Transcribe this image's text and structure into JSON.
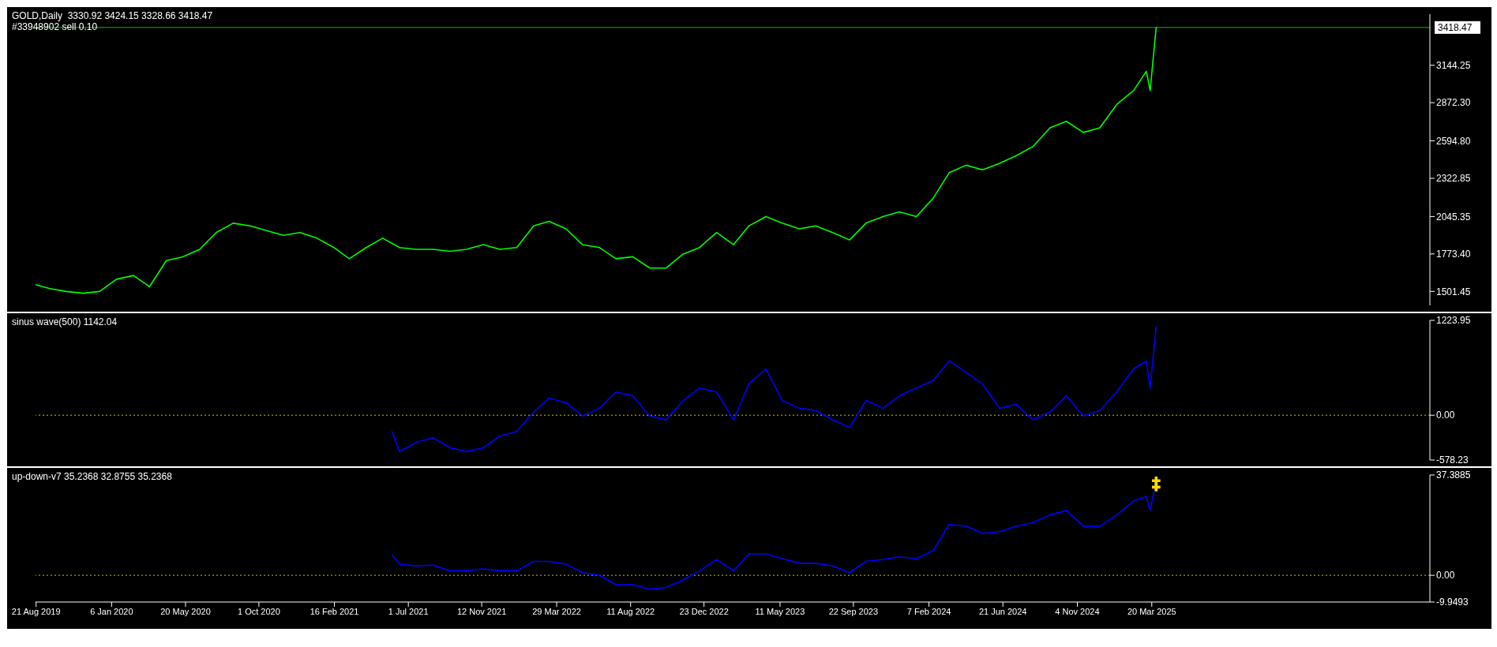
{
  "chart_data": [
    {
      "type": "line",
      "title": "GOLD,Daily  3330.92 3424.15 3328.66 3418.47",
      "annotations": [
        "#33948902 sell 0.10"
      ],
      "xlim": [
        "2019-08-20",
        "2026-08-10"
      ],
      "ylim": [
        1400,
        3515
      ],
      "yticks": [
        1501.45,
        {
          "value": 1773.4,
          "label": "1773.40"
        },
        2045.35,
        2322.85,
        {
          "value": 2594.8,
          "label": "2594.80"
        },
        {
          "value": 2872.3,
          "label": "2872.30"
        },
        3144.25
      ],
      "tick_labels": "y",
      "grid": false,
      "legend": false,
      "marker": "none",
      "ref_lines": [
        {
          "axis": "y",
          "value": 3418.47,
          "label": "3418.47",
          "color": "#00c000",
          "line_style": "solid"
        }
      ],
      "series": [
        {
          "color": "#00ff00",
          "x": [
            "2019-08-21",
            "2019-09-15",
            "2019-10-15",
            "2019-11-15",
            "2019-12-15",
            "2020-01-15",
            "2020-02-15",
            "2020-03-15",
            "2020-04-15",
            "2020-05-15",
            "2020-06-15",
            "2020-07-15",
            "2020-08-15",
            "2020-09-15",
            "2020-10-15",
            "2020-11-15",
            "2020-12-15",
            "2021-01-15",
            "2021-02-15",
            "2021-03-15",
            "2021-04-15",
            "2021-05-15",
            "2021-06-15",
            "2021-07-15",
            "2021-08-15",
            "2021-09-15",
            "2021-10-15",
            "2021-11-15",
            "2021-12-15",
            "2022-01-15",
            "2022-02-15",
            "2022-03-15",
            "2022-04-15",
            "2022-05-15",
            "2022-06-15",
            "2022-07-15",
            "2022-08-15",
            "2022-09-15",
            "2022-10-15",
            "2022-11-15",
            "2022-12-15",
            "2023-01-15",
            "2023-02-15",
            "2023-03-15",
            "2023-04-15",
            "2023-05-15",
            "2023-06-15",
            "2023-07-15",
            "2023-08-15",
            "2023-09-15",
            "2023-10-15",
            "2023-11-15",
            "2023-12-15",
            "2024-01-15",
            "2024-02-15",
            "2024-03-15",
            "2024-04-15",
            "2024-05-15",
            "2024-06-15",
            "2024-07-15",
            "2024-08-15",
            "2024-09-15",
            "2024-10-15",
            "2024-11-15",
            "2024-12-15",
            "2025-01-15",
            "2025-02-15",
            "2025-03-10",
            "2025-03-17",
            "2025-03-28"
          ],
          "values": [
            1549,
            1522,
            1501,
            1488,
            1501,
            1590,
            1617,
            1535,
            1725,
            1753,
            1807,
            1929,
            1997,
            1977,
            1943,
            1909,
            1929,
            1888,
            1820,
            1739,
            1820,
            1888,
            1820,
            1807,
            1807,
            1793,
            1807,
            1841,
            1807,
            1820,
            1977,
            2011,
            1956,
            1841,
            1820,
            1739,
            1753,
            1671,
            1671,
            1773,
            1820,
            1929,
            1841,
            1977,
            2045,
            1997,
            1956,
            1977,
            1929,
            1875,
            1997,
            2045,
            2079,
            2045,
            2180,
            2364,
            2418,
            2384,
            2432,
            2486,
            2554,
            2690,
            2737,
            2656,
            2690,
            2859,
            2961,
            3100,
            2960,
            3418.47
          ]
        }
      ]
    },
    {
      "type": "line",
      "title": "sinus wave(500) 1142.04",
      "xlim": [
        "2019-08-20",
        "2026-08-10"
      ],
      "ylim": [
        -578.23,
        1223.95
      ],
      "yticks": [
        -578.23,
        {
          "value": 0,
          "label": "0.00"
        },
        1223.95
      ],
      "tick_labels": "y",
      "grid": false,
      "legend": false,
      "marker": "none",
      "ref_lines": [
        {
          "axis": "y",
          "value": 0,
          "color": "#c8c800",
          "line_style": "dotted"
        }
      ],
      "series": [
        {
          "color": "#0000ff",
          "x": [
            "2021-06-01",
            "2021-06-15",
            "2021-07-15",
            "2021-08-15",
            "2021-09-15",
            "2021-10-15",
            "2021-11-15",
            "2021-12-15",
            "2022-01-15",
            "2022-02-15",
            "2022-03-15",
            "2022-04-15",
            "2022-05-15",
            "2022-06-15",
            "2022-07-15",
            "2022-08-15",
            "2022-09-15",
            "2022-10-15",
            "2022-11-15",
            "2022-12-15",
            "2023-01-15",
            "2023-02-15",
            "2023-03-15",
            "2023-04-15",
            "2023-05-15",
            "2023-06-15",
            "2023-07-15",
            "2023-08-15",
            "2023-09-15",
            "2023-10-15",
            "2023-11-15",
            "2023-12-15",
            "2024-01-15",
            "2024-02-15",
            "2024-03-15",
            "2024-04-15",
            "2024-05-15",
            "2024-06-15",
            "2024-07-15",
            "2024-08-15",
            "2024-09-15",
            "2024-10-15",
            "2024-11-15",
            "2024-12-15",
            "2025-01-15",
            "2025-02-15",
            "2025-03-10",
            "2025-03-17",
            "2025-03-28"
          ],
          "values": [
            -210,
            -470,
            -350,
            -290,
            -420,
            -470,
            -420,
            -270,
            -210,
            40,
            220,
            160,
            -10,
            90,
            300,
            250,
            -10,
            -60,
            190,
            350,
            300,
            -60,
            400,
            600,
            190,
            90,
            60,
            -60,
            -160,
            190,
            90,
            250,
            350,
            450,
            700,
            550,
            400,
            90,
            140,
            -60,
            40,
            250,
            -10,
            60,
            300,
            600,
            700,
            350,
            1142.04
          ]
        }
      ]
    },
    {
      "type": "line",
      "title": "up-down-v7 35.2368 32.8755 35.2368",
      "xlim": [
        "2019-08-20",
        "2026-08-10"
      ],
      "ylim": [
        -9.9493,
        37.3885
      ],
      "yticks": [
        -9.9493,
        {
          "value": 0,
          "label": "0.00"
        },
        37.3885
      ],
      "xticks": [
        {
          "value": "2019-08-21",
          "label": "21 Aug 2019"
        },
        {
          "value": "2020-01-06",
          "label": "6 Jan 2020"
        },
        {
          "value": "2020-05-20",
          "label": "20 May 2020"
        },
        {
          "value": "2020-10-01",
          "label": "1 Oct 2020"
        },
        {
          "value": "2021-02-16",
          "label": "16 Feb 2021"
        },
        {
          "value": "2021-07-01",
          "label": "1 Jul 2021"
        },
        {
          "value": "2021-11-12",
          "label": "12 Nov 2021"
        },
        {
          "value": "2022-03-29",
          "label": "29 Mar 2022"
        },
        {
          "value": "2022-08-11",
          "label": "11 Aug 2022"
        },
        {
          "value": "2022-12-23",
          "label": "23 Dec 2022"
        },
        {
          "value": "2023-05-11",
          "label": "11 May 2023"
        },
        {
          "value": "2023-09-22",
          "label": "22 Sep 2023"
        },
        {
          "value": "2024-02-07",
          "label": "7 Feb 2024"
        },
        {
          "value": "2024-06-21",
          "label": "21 Jun 2024"
        },
        {
          "value": "2024-11-04",
          "label": "4 Nov 2024"
        },
        {
          "value": "2025-03-20",
          "label": "20 Mar 2025"
        }
      ],
      "grid": false,
      "legend": false,
      "marker": "none",
      "ref_lines": [
        {
          "axis": "y",
          "value": 0,
          "color": "#c8c800",
          "line_style": "dotted"
        }
      ],
      "series": [
        {
          "color": "#0000ff",
          "x": [
            "2021-06-01",
            "2021-06-15",
            "2021-07-15",
            "2021-08-15",
            "2021-09-15",
            "2021-10-15",
            "2021-11-15",
            "2021-12-15",
            "2022-01-15",
            "2022-02-15",
            "2022-03-15",
            "2022-04-15",
            "2022-05-15",
            "2022-06-15",
            "2022-07-15",
            "2022-08-15",
            "2022-09-15",
            "2022-10-15",
            "2022-11-15",
            "2022-12-15",
            "2023-01-15",
            "2023-02-15",
            "2023-03-15",
            "2023-04-15",
            "2023-05-15",
            "2023-06-15",
            "2023-07-15",
            "2023-08-15",
            "2023-09-15",
            "2023-10-15",
            "2023-11-15",
            "2023-12-15",
            "2024-01-15",
            "2024-02-15",
            "2024-03-15",
            "2024-04-15",
            "2024-05-15",
            "2024-06-15",
            "2024-07-15",
            "2024-08-15",
            "2024-09-15",
            "2024-10-15",
            "2024-11-15",
            "2024-12-15",
            "2025-01-15",
            "2025-02-15",
            "2025-03-10",
            "2025-03-17",
            "2025-03-28"
          ],
          "values": [
            7.6,
            4.2,
            3.5,
            3.8,
            1.7,
            1.7,
            2.4,
            1.7,
            1.7,
            5.2,
            5.2,
            4.2,
            1.0,
            0,
            -3.5,
            -3.5,
            -5.2,
            -4.5,
            -1.7,
            1.7,
            5.9,
            1.7,
            8.0,
            8.0,
            6.2,
            4.5,
            4.5,
            3.5,
            1.0,
            5.2,
            5.9,
            6.9,
            6.2,
            9.3,
            19.0,
            18.3,
            15.6,
            16.3,
            18.3,
            19.7,
            22.5,
            24.2,
            18.3,
            18.3,
            22.5,
            27.7,
            29.4,
            24.2,
            35.2368
          ]
        },
        {
          "type": "scatter",
          "color": "#ffd700",
          "marker": "cross",
          "x": [
            "2025-03-28",
            "2025-03-28"
          ],
          "values": [
            35.2368,
            32.8755
          ]
        }
      ]
    }
  ]
}
